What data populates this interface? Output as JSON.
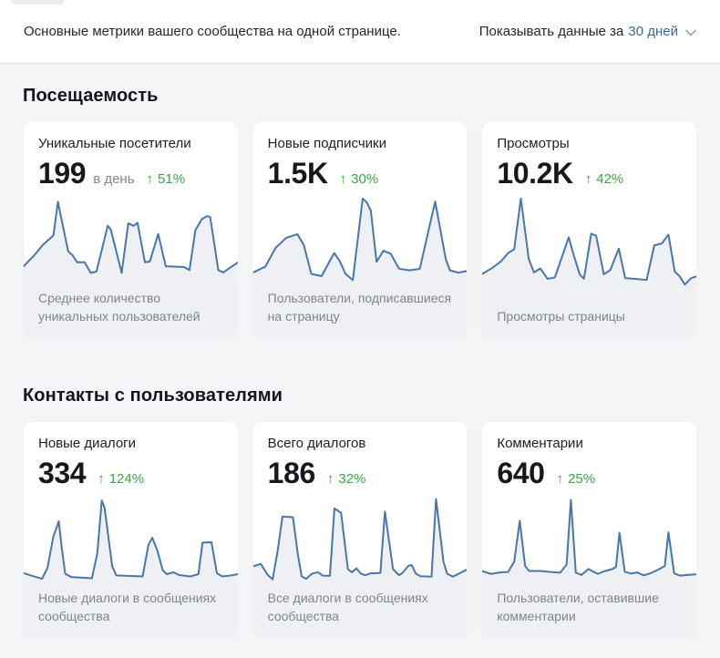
{
  "header": {
    "subtitle": "Основные метрики вашего сообщества на одной странице.",
    "period_label": "Показывать данные за",
    "period_value": "30 дней"
  },
  "icons": {
    "up_arrow": "↑",
    "chevron_down": "v"
  },
  "colors": {
    "line_blue": "#4a76a8",
    "area_fill": "#eef0f3",
    "positive_green": "#3fa347",
    "link_blue": "#3a6796",
    "page_background": "#f4f5f7",
    "card_background": "#ffffff"
  },
  "sections": [
    {
      "title": "Посещаемость",
      "cards": [
        {
          "title": "Уникальные посетители",
          "value": "199",
          "unit": "в день",
          "delta": "51%",
          "caption": "Среднее количество уникальных пользователей"
        },
        {
          "title": "Новые подписчики",
          "value": "1.5K",
          "unit": "",
          "delta": "30%",
          "caption": "Пользователи, подписавшиеся на страницу"
        },
        {
          "title": "Просмотры",
          "value": "10.2K",
          "unit": "",
          "delta": "42%",
          "caption": "Просмотры страницы"
        }
      ]
    },
    {
      "title": "Контакты с пользователями",
      "cards": [
        {
          "title": "Новые диалоги",
          "value": "334",
          "unit": "",
          "delta": "124%",
          "caption": "Новые диалоги в сообщениях сообщества"
        },
        {
          "title": "Всего диалогов",
          "value": "186",
          "unit": "",
          "delta": "32%",
          "caption": "Все диалоги в сообщениях сообщества"
        },
        {
          "title": "Комментарии",
          "value": "640",
          "unit": "",
          "delta": "25%",
          "caption": "Пользователи, оставившие комментарии"
        }
      ]
    }
  ],
  "chart_data": [
    {
      "type": "line",
      "label": "Уникальные посетители",
      "current_value": "199 в день",
      "delta": "51%",
      "coords_note": "normalized x 0-100, y 0-41 screen-down",
      "points": [
        [
          0,
          32.9
        ],
        [
          4.9,
          27.7
        ],
        [
          9,
          22.6
        ],
        [
          12.5,
          19.4
        ],
        [
          13.9,
          18.1
        ],
        [
          16,
          1.9
        ],
        [
          20.8,
          25.8
        ],
        [
          22.9,
          27.7
        ],
        [
          25,
          31
        ],
        [
          28.5,
          31
        ],
        [
          31.3,
          36.1
        ],
        [
          34,
          35.5
        ],
        [
          39.3,
          13.5
        ],
        [
          40.7,
          15.2
        ],
        [
          45.8,
          36.1
        ],
        [
          48.9,
          12.3
        ],
        [
          51.4,
          13.5
        ],
        [
          53.2,
          12
        ],
        [
          56.7,
          31
        ],
        [
          59,
          30.6
        ],
        [
          62.9,
          17.4
        ],
        [
          66.4,
          32.9
        ],
        [
          75,
          33.3
        ],
        [
          77.5,
          34.8
        ],
        [
          80.3,
          15.5
        ],
        [
          83.3,
          10.3
        ],
        [
          85.7,
          8.8
        ],
        [
          87.2,
          9.3
        ],
        [
          91,
          34.8
        ],
        [
          93.3,
          35.9
        ],
        [
          100,
          31.2
        ]
      ]
    },
    {
      "type": "line",
      "label": "Новые подписчики",
      "current_value": "1.5K",
      "delta": "30%",
      "coords_note": "normalized x 0-100, y 0-41 screen-down",
      "points": [
        [
          0,
          35.9
        ],
        [
          5.6,
          33.1
        ],
        [
          10.4,
          24.1
        ],
        [
          15.3,
          19.3
        ],
        [
          20.6,
          17.5
        ],
        [
          23.6,
          22.8
        ],
        [
          27.1,
          36.6
        ],
        [
          31.9,
          37.7
        ],
        [
          35.4,
          31
        ],
        [
          37.8,
          26.6
        ],
        [
          40.3,
          30.3
        ],
        [
          43.1,
          36.6
        ],
        [
          46.5,
          39.6
        ],
        [
          51.1,
          0.4
        ],
        [
          53.1,
          2.3
        ],
        [
          54.9,
          6.2
        ],
        [
          57.6,
          30.8
        ],
        [
          60.8,
          25.5
        ],
        [
          64.2,
          26.9
        ],
        [
          68.1,
          34.1
        ],
        [
          72.9,
          34.9
        ],
        [
          77.8,
          34.2
        ],
        [
          85,
          1.8
        ],
        [
          90,
          29.7
        ],
        [
          91.9,
          34.9
        ],
        [
          95.8,
          36
        ],
        [
          100,
          35.2
        ]
      ]
    },
    {
      "type": "line",
      "label": "Просмотры",
      "current_value": "10.2K",
      "delta": "42%",
      "coords_note": "normalized x 0-100, y 0-41 screen-down",
      "points": [
        [
          0,
          33.3
        ],
        [
          4.8,
          30.6
        ],
        [
          8.8,
          27.8
        ],
        [
          12.2,
          24.1
        ],
        [
          15,
          22.5
        ],
        [
          18.1,
          0.3
        ],
        [
          21.8,
          26.7
        ],
        [
          24.2,
          32.6
        ],
        [
          27.2,
          30.9
        ],
        [
          30.6,
          35.4
        ],
        [
          34,
          34.8
        ],
        [
          40.5,
          17.3
        ],
        [
          42.9,
          25.3
        ],
        [
          45.6,
          33.4
        ],
        [
          47.6,
          35.4
        ],
        [
          51,
          15.7
        ],
        [
          53.3,
          16.6
        ],
        [
          56.9,
          33.4
        ],
        [
          59.9,
          31.6
        ],
        [
          63.9,
          22.2
        ],
        [
          66.9,
          35.1
        ],
        [
          72.1,
          35.5
        ],
        [
          76.9,
          35.9
        ],
        [
          80.5,
          20.8
        ],
        [
          84.1,
          19.9
        ],
        [
          87.1,
          16.1
        ],
        [
          90.1,
          32.3
        ],
        [
          92.2,
          34.1
        ],
        [
          94.8,
          37.9
        ],
        [
          97.7,
          35.1
        ],
        [
          100,
          34.4
        ]
      ]
    },
    {
      "type": "line",
      "label": "Новые диалоги",
      "current_value": "334",
      "delta": "124%",
      "coords_note": "normalized x 0-100, y 0-41 screen-down",
      "points": [
        [
          0,
          36.3
        ],
        [
          4.2,
          37.7
        ],
        [
          8.6,
          39
        ],
        [
          11.1,
          33.8
        ],
        [
          13.9,
          18.6
        ],
        [
          16.4,
          11.4
        ],
        [
          17.8,
          24.1
        ],
        [
          19.4,
          36.6
        ],
        [
          22.2,
          38.2
        ],
        [
          31.9,
          38.8
        ],
        [
          34.4,
          26.9
        ],
        [
          36.5,
          1.4
        ],
        [
          37.8,
          4.8
        ],
        [
          41.4,
          33.1
        ],
        [
          43.3,
          37.4
        ],
        [
          55.6,
          37.9
        ],
        [
          58.3,
          22.8
        ],
        [
          60.1,
          19.3
        ],
        [
          62.5,
          25.5
        ],
        [
          65,
          34.9
        ],
        [
          66.9,
          36.8
        ],
        [
          70.1,
          35.9
        ],
        [
          72.5,
          37.2
        ],
        [
          77.8,
          37.9
        ],
        [
          81.7,
          36.8
        ],
        [
          83.6,
          21.7
        ],
        [
          87.8,
          21.4
        ],
        [
          90.3,
          36.3
        ],
        [
          92.8,
          37.9
        ],
        [
          97.2,
          37.4
        ],
        [
          100,
          36.8
        ]
      ]
    },
    {
      "type": "line",
      "label": "Всего диалогов",
      "current_value": "186",
      "delta": "32%",
      "coords_note": "normalized x 0-100, y 0-41 screen-down",
      "points": [
        [
          0,
          33
        ],
        [
          3.5,
          31.9
        ],
        [
          6.7,
          37.2
        ],
        [
          9,
          39.3
        ],
        [
          11.4,
          25.3
        ],
        [
          13.6,
          9.1
        ],
        [
          18.5,
          9.4
        ],
        [
          20.8,
          27.4
        ],
        [
          22.6,
          37.9
        ],
        [
          24.7,
          39
        ],
        [
          27.5,
          36.5
        ],
        [
          30.3,
          35.9
        ],
        [
          32.4,
          37.5
        ],
        [
          35.8,
          37.6
        ],
        [
          37.9,
          5.2
        ],
        [
          41,
          7.3
        ],
        [
          44.2,
          34.4
        ],
        [
          46.1,
          35.9
        ],
        [
          48.2,
          34
        ],
        [
          50.3,
          36.6
        ],
        [
          52.5,
          37.3
        ],
        [
          54.4,
          36.5
        ],
        [
          59.4,
          36.2
        ],
        [
          61.5,
          6.7
        ],
        [
          65.3,
          34.4
        ],
        [
          68.1,
          37.3
        ],
        [
          69.7,
          36.2
        ],
        [
          72.5,
          32.8
        ],
        [
          74,
          32.4
        ],
        [
          76,
          36.6
        ],
        [
          78.1,
          37.8
        ],
        [
          83.3,
          38
        ],
        [
          85.4,
          0.7
        ],
        [
          88.9,
          30.9
        ],
        [
          90.6,
          36.6
        ],
        [
          93.3,
          38
        ],
        [
          100,
          34.5
        ]
      ]
    },
    {
      "type": "line",
      "label": "Комментарии",
      "current_value": "640",
      "delta": "25%",
      "coords_note": "normalized x 0-100, y 0-41 screen-down",
      "points": [
        [
          0,
          35.3
        ],
        [
          4.1,
          36.7
        ],
        [
          8.2,
          36
        ],
        [
          12.2,
          35.7
        ],
        [
          15,
          30.8
        ],
        [
          17.6,
          11.1
        ],
        [
          20.1,
          32.9
        ],
        [
          22,
          35.3
        ],
        [
          27.2,
          35.3
        ],
        [
          32.7,
          35.8
        ],
        [
          36.5,
          36.1
        ],
        [
          39.5,
          32.2
        ],
        [
          41.5,
          1
        ],
        [
          43.8,
          36.1
        ],
        [
          46.5,
          37.2
        ],
        [
          49.7,
          34.3
        ],
        [
          51.4,
          35.3
        ],
        [
          54.1,
          36.7
        ],
        [
          56.5,
          35.6
        ],
        [
          61,
          34.3
        ],
        [
          62.6,
          33.3
        ],
        [
          64.2,
          16.9
        ],
        [
          66.7,
          35.7
        ],
        [
          69.7,
          36.5
        ],
        [
          72.5,
          36
        ],
        [
          75.6,
          37.4
        ],
        [
          78.6,
          36.4
        ],
        [
          81.6,
          35
        ],
        [
          85.4,
          32.9
        ],
        [
          87.1,
          16.7
        ],
        [
          89.8,
          36.4
        ],
        [
          92.5,
          37.5
        ],
        [
          97.3,
          37.1
        ],
        [
          100,
          36.9
        ]
      ]
    }
  ]
}
